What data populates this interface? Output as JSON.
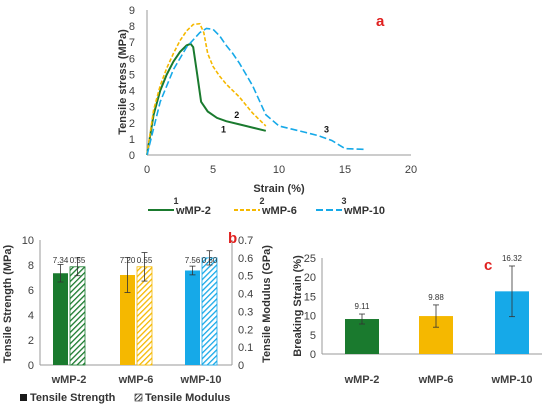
{
  "chart_data": [
    {
      "panel": "a",
      "type": "line",
      "xlabel": "Strain (%)",
      "ylabel": "Tensile stress (MPa)",
      "xlim": [
        0,
        20
      ],
      "ylim": [
        0,
        9
      ],
      "xticks": [
        "0",
        "5",
        "10",
        "15",
        "20"
      ],
      "yticks": [
        "0",
        "1",
        "2",
        "3",
        "4",
        "5",
        "6",
        "7",
        "8",
        "9"
      ],
      "legend_position": "bottom",
      "series": [
        {
          "name": "wMP-2",
          "number": "1",
          "color": "#1a7a2e",
          "dash": "solid",
          "x": [
            0,
            0.5,
            1,
            1.5,
            2,
            2.5,
            3,
            3.3,
            3.5,
            3.8,
            4.1,
            4.6,
            5.3,
            6,
            7,
            8,
            9
          ],
          "y": [
            0,
            2.5,
            4.0,
            5.0,
            5.8,
            6.4,
            6.8,
            6.9,
            6.7,
            5.0,
            3.3,
            2.7,
            2.3,
            2.1,
            1.9,
            1.7,
            1.5
          ]
        },
        {
          "name": "wMP-6",
          "number": "2",
          "color": "#f5b800",
          "dash": "dash",
          "x": [
            0,
            0.5,
            1,
            1.5,
            2,
            2.5,
            3,
            3.5,
            4,
            4.3,
            4.6,
            5,
            5.5,
            6,
            6.5,
            7,
            7.5,
            8,
            9
          ],
          "y": [
            0,
            2.8,
            4.3,
            5.4,
            6.3,
            7.1,
            7.7,
            8.1,
            8.15,
            7.6,
            6.3,
            5.5,
            4.9,
            4.4,
            4.0,
            3.6,
            3.1,
            2.6,
            1.8
          ]
        },
        {
          "name": "wMP-10",
          "number": "3",
          "color": "#16a9e8",
          "dash": "longdash",
          "x": [
            0,
            1,
            2,
            3,
            4,
            4.5,
            5,
            5.5,
            6,
            6.5,
            7,
            7.5,
            8,
            8.5,
            9,
            10,
            11,
            12,
            13,
            14,
            15,
            16.5
          ],
          "y": [
            0,
            3.3,
            5.3,
            6.7,
            7.6,
            7.85,
            7.8,
            7.4,
            6.8,
            6.3,
            5.7,
            5.0,
            4.3,
            3.4,
            2.5,
            1.8,
            1.6,
            1.4,
            1.2,
            0.9,
            0.4,
            0.35
          ]
        }
      ],
      "annotations": [
        {
          "text": "1",
          "x": 5.8,
          "y": 1.4
        },
        {
          "text": "2",
          "x": 6.8,
          "y": 2.3
        },
        {
          "text": "3",
          "x": 13.6,
          "y": 1.4
        }
      ]
    },
    {
      "panel": "b",
      "type": "bar",
      "categories": [
        "wMP-2",
        "wMP-6",
        "wMP-10"
      ],
      "ylabel": "Tensile Strength (MPa)",
      "y2label": "Tensile Modulus (GPa)",
      "ylim": [
        0,
        10
      ],
      "y2lim": [
        0,
        0.7
      ],
      "yticks": [
        "0",
        "2",
        "4",
        "6",
        "8",
        "10"
      ],
      "y2ticks": [
        "0",
        "0.1",
        "0.2",
        "0.3",
        "0.4",
        "0.5",
        "0.6",
        "0.7"
      ],
      "colors": [
        "#1a7a2e",
        "#f5b800",
        "#16a9e8"
      ],
      "series": [
        {
          "name": "Tensile Strength",
          "axis": "left",
          "values": [
            7.34,
            7.2,
            7.56
          ],
          "labels": [
            "7.34",
            "7.20",
            "7.56"
          ],
          "errors": [
            0.7,
            1.4,
            0.35
          ],
          "pattern": "solid"
        },
        {
          "name": "Tensile Modulus",
          "axis": "right",
          "values": [
            0.55,
            0.55,
            0.6
          ],
          "labels": [
            "0.55",
            "0.55",
            "0.60"
          ],
          "errors": [
            0.05,
            0.08,
            0.04
          ],
          "pattern": "hatched"
        }
      ],
      "legend_position": "bottom"
    },
    {
      "panel": "c",
      "type": "bar",
      "categories": [
        "wMP-2",
        "wMP-6",
        "wMP-10"
      ],
      "ylabel": "Breaking Strain (%)",
      "ylim": [
        0,
        25
      ],
      "yticks": [
        "0",
        "5",
        "10",
        "15",
        "20",
        "25"
      ],
      "colors": [
        "#1a7a2e",
        "#f5b800",
        "#16a9e8"
      ],
      "values": [
        9.11,
        9.88,
        16.32
      ],
      "labels": [
        "9.11",
        "9.88",
        "16.32"
      ],
      "errors": [
        1.3,
        2.9,
        6.6
      ]
    }
  ]
}
